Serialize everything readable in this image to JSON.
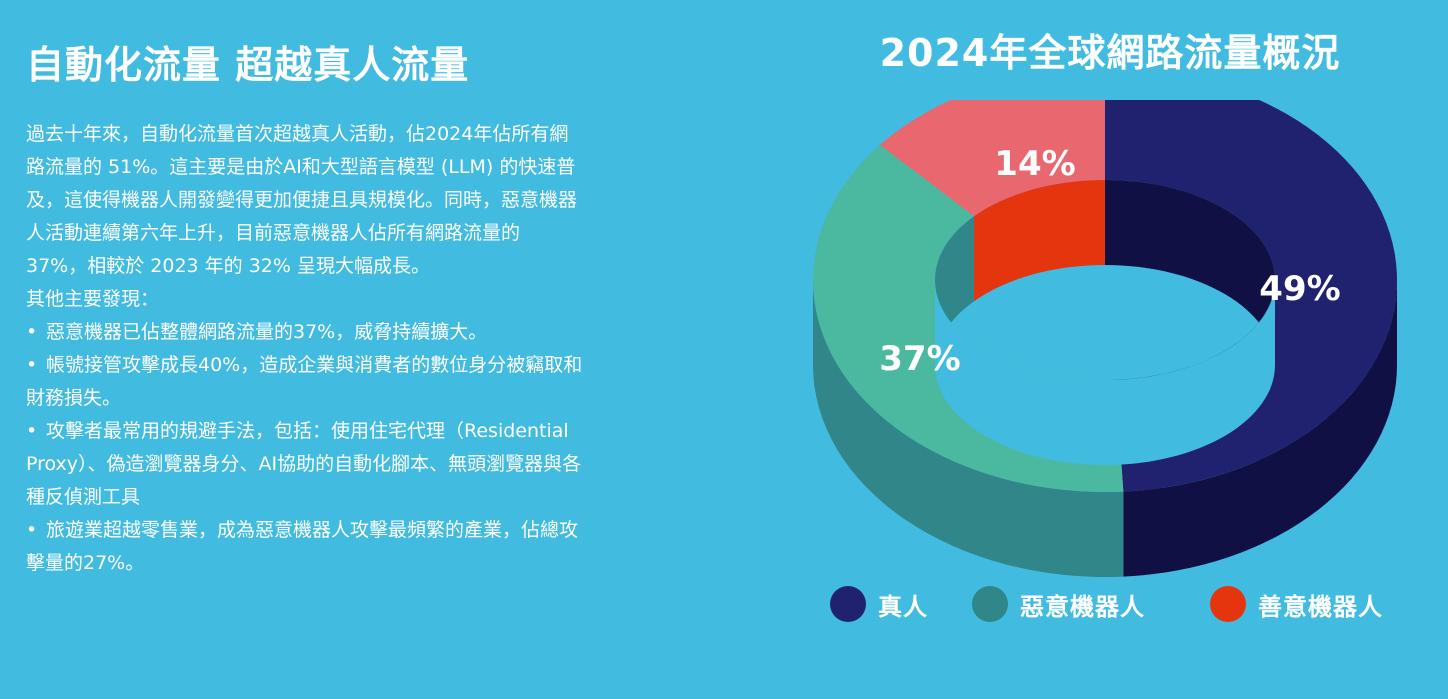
{
  "headline": "自動化流量 超越真人流量",
  "paragraph": "過去十年來，自動化流量首次超越真人活動，佔2024年佔所有網路流量的 51%。這主要是由於AI和大型語言模型 (LLM) 的快速普及，這使得機器人開發變得更加便捷且具規模化。同時，惡意機器人活動連續第六年上升，目前惡意機器人佔所有網路流量的 37%，相較於 2023 年的 32% 呈現大幅成長。",
  "subheading": "其他主要發現：",
  "bullets": [
    "惡意機器已佔整體網路流量的37%，威脅持續擴大。",
    "帳號接管攻擊成長40%，造成企業與消費者的數位身分被竊取和財務損失。",
    "攻擊者最常用的規避手法，包括：使用住宅代理（Residential Proxy）、偽造瀏覽器身分、AI協助的自動化腳本、無頭瀏覽器與各種反偵測工具",
    "旅遊業超越零售業，成為惡意機器人攻擊最頻繁的產業，佔總攻擊量的27%。"
  ],
  "bullet_symbol": "•",
  "chart_data": {
    "type": "pie",
    "style": "3d-donut",
    "title": "2024年全球網路流量概況",
    "categories": [
      "真人",
      "惡意機器人",
      "善意機器人"
    ],
    "values": [
      49,
      37,
      14
    ],
    "value_labels": [
      "49%",
      "37%",
      "14%"
    ],
    "colors": {
      "top": [
        "#20216f",
        "#4bb8a0",
        "#e9676e"
      ],
      "side": [
        "#111044",
        "#308689",
        "#e5350f"
      ]
    },
    "legend_colors": [
      "#20216f",
      "#308689",
      "#e5350f"
    ],
    "legend_position": "bottom"
  }
}
